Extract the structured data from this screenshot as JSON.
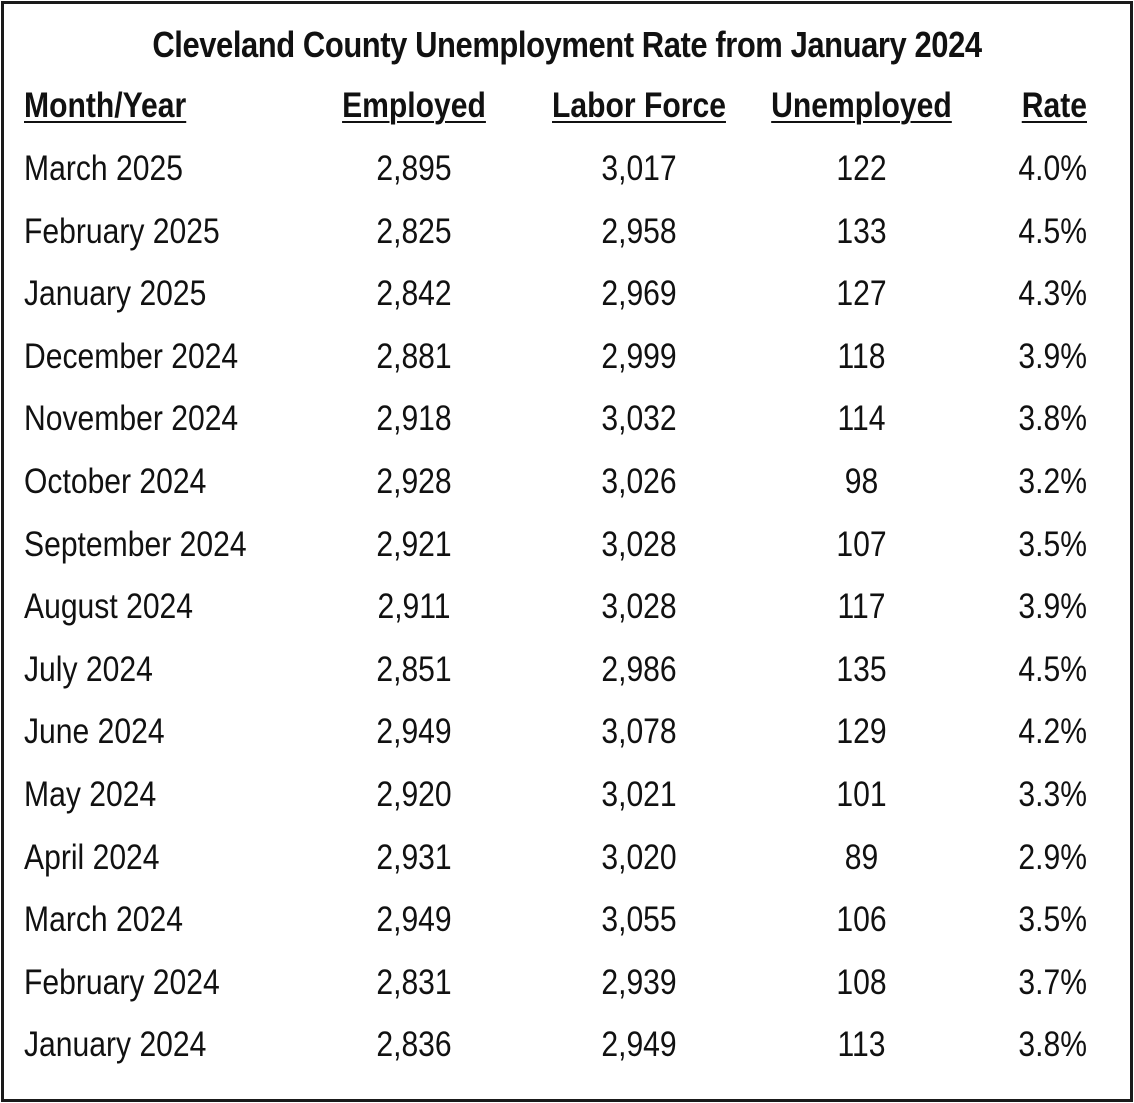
{
  "chart_data": {
    "type": "table",
    "title": "Cleveland County Unemployment Rate from January 2024",
    "columns": [
      "Month/Year",
      "Employed",
      "Labor Force",
      "Unemployed",
      "Rate"
    ],
    "rows": [
      [
        "March 2025",
        "2,895",
        "3,017",
        "122",
        "4.0%"
      ],
      [
        "February 2025",
        "2,825",
        "2,958",
        "133",
        "4.5%"
      ],
      [
        "January 2025",
        "2,842",
        "2,969",
        "127",
        "4.3%"
      ],
      [
        "December 2024",
        "2,881",
        "2,999",
        "118",
        "3.9%"
      ],
      [
        "November 2024",
        "2,918",
        "3,032",
        "114",
        "3.8%"
      ],
      [
        "October 2024",
        "2,928",
        "3,026",
        "98",
        "3.2%"
      ],
      [
        "September 2024",
        "2,921",
        "3,028",
        "107",
        "3.5%"
      ],
      [
        "August 2024",
        "2,911",
        "3,028",
        "117",
        "3.9%"
      ],
      [
        "July 2024",
        "2,851",
        "2,986",
        "135",
        "4.5%"
      ],
      [
        "June 2024",
        "2,949",
        "3,078",
        "129",
        "4.2%"
      ],
      [
        "May 2024",
        "2,920",
        "3,021",
        "101",
        "3.3%"
      ],
      [
        "April 2024",
        "2,931",
        "3,020",
        "89",
        "2.9%"
      ],
      [
        "March 2024",
        "2,949",
        "3,055",
        "106",
        "3.5%"
      ],
      [
        "February 2024",
        "2,831",
        "2,939",
        "108",
        "3.7%"
      ],
      [
        "January 2024",
        "2,836",
        "2,949",
        "113",
        "3.8%"
      ]
    ]
  }
}
